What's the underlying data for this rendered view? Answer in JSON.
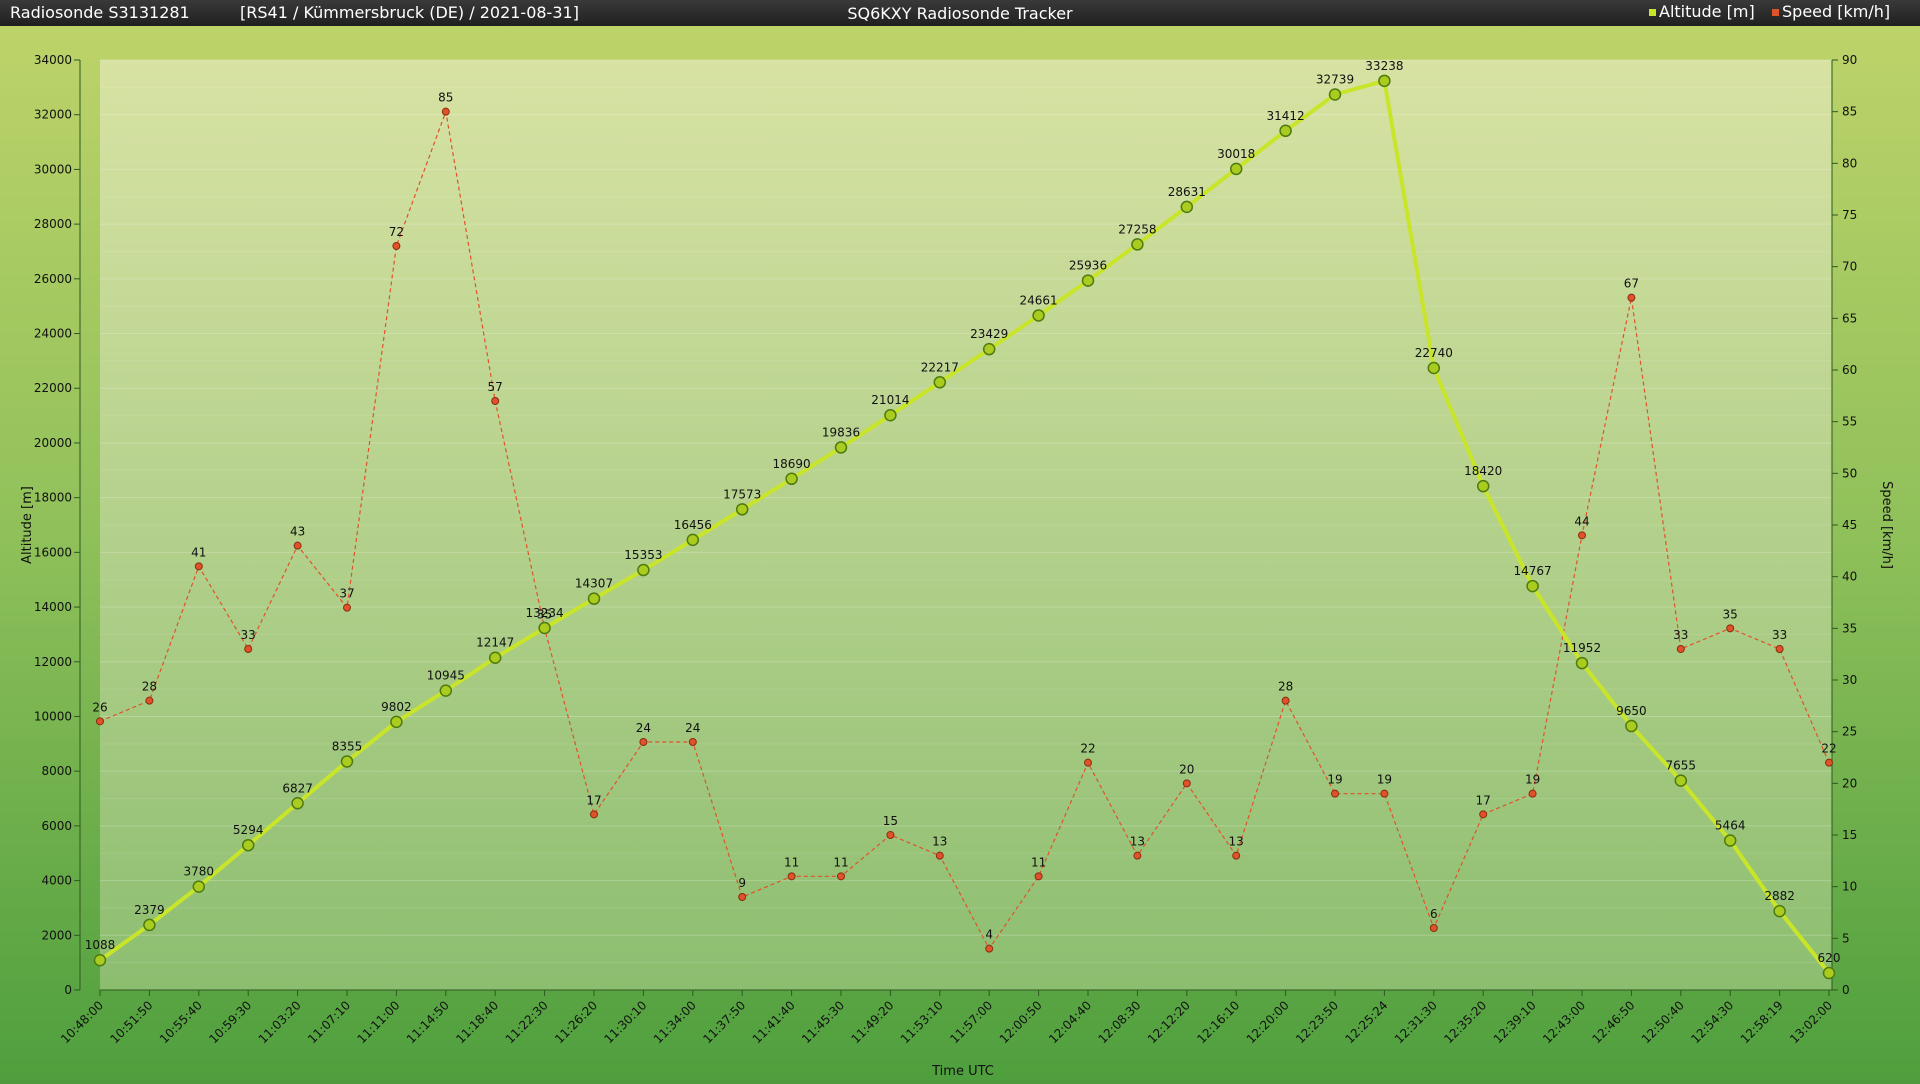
{
  "header": {
    "left": "Radiosonde S3131281",
    "info": "[RS41 / Kümmersbruck (DE) / 2021-08-31]",
    "title": "SQ6KXY Radiosonde Tracker"
  },
  "colors": {
    "altitude": "#c9e52a",
    "altitude_marker_fill": "#a9cc1f",
    "altitude_marker_stroke": "#4f7a10",
    "speed": "#e0522a",
    "speed_marker_stroke": "#8a2c10",
    "header_bg": "#2b2b2b",
    "header_text": "#ffffff"
  },
  "chart_data": {
    "type": "line",
    "xlabel": "Time UTC",
    "ylabel_left": "Altitude [m]",
    "ylabel_right": "Speed [km/h]",
    "ylim_left": [
      0,
      34000
    ],
    "ylim_right": [
      0,
      90
    ],
    "yticks_left": [
      0,
      2000,
      4000,
      6000,
      8000,
      10000,
      12000,
      14000,
      16000,
      18000,
      20000,
      22000,
      24000,
      26000,
      28000,
      30000,
      32000,
      34000
    ],
    "yticks_right": [
      0,
      5,
      10,
      15,
      20,
      25,
      30,
      35,
      40,
      45,
      50,
      55,
      60,
      65,
      70,
      75,
      80,
      85,
      90
    ],
    "grid": true,
    "legend_position": "top-right",
    "categories": [
      "10:48:00",
      "10:51:50",
      "10:55:40",
      "10:59:30",
      "11:03:20",
      "11:07:10",
      "11:11:00",
      "11:14:50",
      "11:18:40",
      "11:22:30",
      "11:26:20",
      "11:30:10",
      "11:34:00",
      "11:37:50",
      "11:41:40",
      "11:45:30",
      "11:49:20",
      "11:53:10",
      "11:57:00",
      "12:00:50",
      "12:04:40",
      "12:08:30",
      "12:12:20",
      "12:16:10",
      "12:20:00",
      "12:23:50",
      "12:25:24",
      "12:31:30",
      "12:35:20",
      "12:39:10",
      "12:43:00",
      "12:46:50",
      "12:50:40",
      "12:54:30",
      "12:58:19",
      "13:02:00"
    ],
    "series": [
      {
        "name": "Altitude [m]",
        "axis": "left",
        "values": [
          1088,
          2379,
          3780,
          5294,
          6827,
          8355,
          9802,
          10945,
          12147,
          13234,
          14307,
          15353,
          16456,
          17573,
          18690,
          19836,
          21014,
          22217,
          23429,
          24661,
          25936,
          27258,
          28631,
          30018,
          31412,
          32739,
          33238,
          22740,
          18420,
          14767,
          11952,
          9650,
          7655,
          5464,
          2882,
          620
        ]
      },
      {
        "name": "Speed [km/h]",
        "axis": "right",
        "values": [
          26,
          28,
          41,
          33,
          43,
          37,
          72,
          85,
          57,
          35,
          17,
          24,
          24,
          9,
          11,
          11,
          15,
          13,
          4,
          11,
          22,
          13,
          20,
          13,
          28,
          19,
          19,
          6,
          17,
          19,
          44,
          67,
          33,
          35,
          33,
          22
        ]
      }
    ]
  }
}
